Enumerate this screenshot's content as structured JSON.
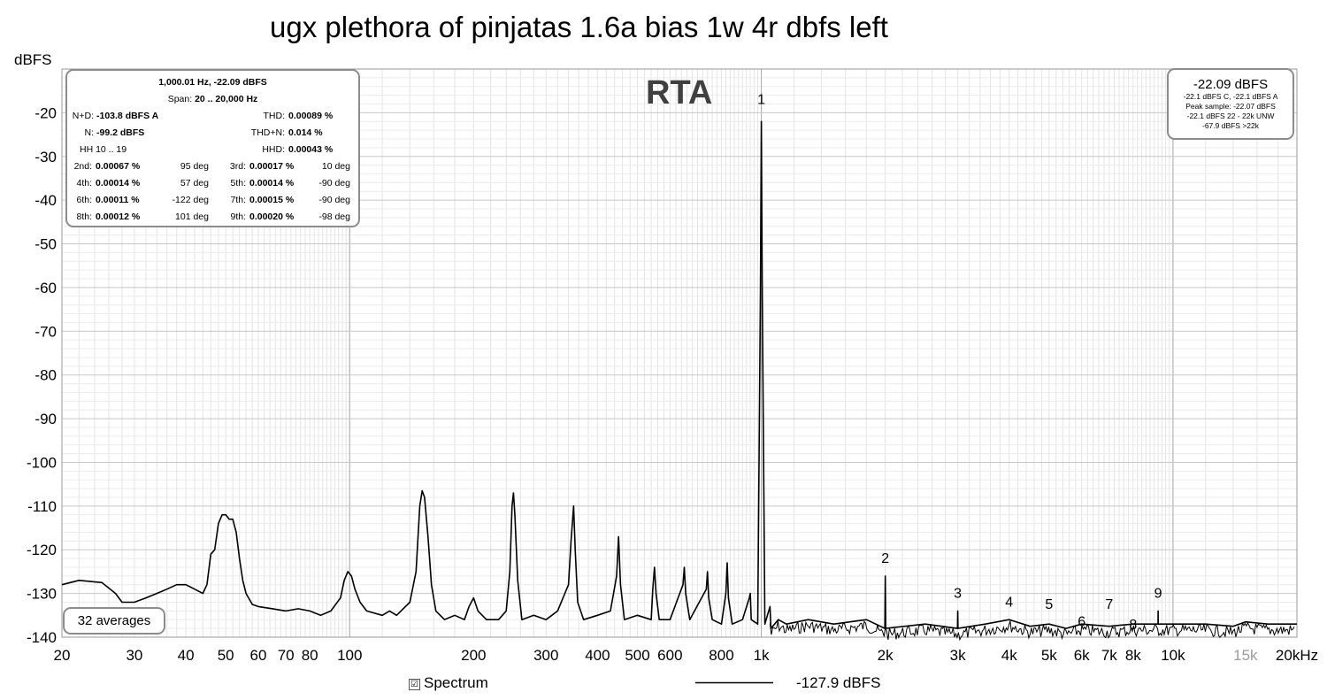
{
  "chart_data": {
    "type": "line",
    "title": "ugx plethora of pinjatas 1.6a bias 1w 4r dbfs left",
    "ylabel": "dBFS",
    "xlabel": "",
    "x_scale": "log",
    "xlim": [
      20,
      20000
    ],
    "ylim": [
      -140,
      -10
    ],
    "grid": true,
    "x_ticks": [
      {
        "v": 20,
        "t": "20"
      },
      {
        "v": 30,
        "t": "30"
      },
      {
        "v": 40,
        "t": "40"
      },
      {
        "v": 50,
        "t": "50"
      },
      {
        "v": 60,
        "t": "60"
      },
      {
        "v": 70,
        "t": "70"
      },
      {
        "v": 80,
        "t": "80"
      },
      {
        "v": 100,
        "t": "100"
      },
      {
        "v": 200,
        "t": "200"
      },
      {
        "v": 300,
        "t": "300"
      },
      {
        "v": 400,
        "t": "400"
      },
      {
        "v": 500,
        "t": "500"
      },
      {
        "v": 600,
        "t": "600"
      },
      {
        "v": 800,
        "t": "800"
      },
      {
        "v": 1000,
        "t": "1k"
      },
      {
        "v": 2000,
        "t": "2k"
      },
      {
        "v": 3000,
        "t": "3k"
      },
      {
        "v": 4000,
        "t": "4k"
      },
      {
        "v": 5000,
        "t": "5k"
      },
      {
        "v": 6000,
        "t": "6k"
      },
      {
        "v": 7000,
        "t": "7k"
      },
      {
        "v": 8000,
        "t": "8k"
      },
      {
        "v": 10000,
        "t": "10k"
      },
      {
        "v": 15000,
        "t": "15k",
        "faint": true
      },
      {
        "v": 20000,
        "t": "20kHz"
      }
    ],
    "y_ticks": [
      -20,
      -30,
      -40,
      -50,
      -60,
      -70,
      -80,
      -90,
      -100,
      -110,
      -120,
      -130,
      -140
    ],
    "series": [
      {
        "name": "Spectrum",
        "color": "#000000",
        "points": [
          [
            20,
            -128
          ],
          [
            22,
            -127
          ],
          [
            25,
            -127.5
          ],
          [
            27,
            -130
          ],
          [
            28,
            -132
          ],
          [
            30,
            -132
          ],
          [
            32,
            -131
          ],
          [
            34,
            -130
          ],
          [
            36,
            -129
          ],
          [
            38,
            -128
          ],
          [
            40,
            -128
          ],
          [
            42,
            -129
          ],
          [
            44,
            -130
          ],
          [
            45,
            -128
          ],
          [
            46,
            -121
          ],
          [
            47,
            -120
          ],
          [
            48,
            -114
          ],
          [
            49,
            -112
          ],
          [
            50,
            -112
          ],
          [
            51,
            -113
          ],
          [
            52,
            -113
          ],
          [
            53,
            -116
          ],
          [
            54,
            -122
          ],
          [
            55,
            -127
          ],
          [
            56,
            -130
          ],
          [
            58,
            -132.5
          ],
          [
            60,
            -133
          ],
          [
            65,
            -133.5
          ],
          [
            70,
            -134
          ],
          [
            75,
            -133.5
          ],
          [
            80,
            -134
          ],
          [
            85,
            -135
          ],
          [
            90,
            -134
          ],
          [
            95,
            -131
          ],
          [
            97,
            -127
          ],
          [
            99,
            -125
          ],
          [
            101,
            -126
          ],
          [
            103,
            -129
          ],
          [
            106,
            -132
          ],
          [
            110,
            -134
          ],
          [
            120,
            -135
          ],
          [
            125,
            -134
          ],
          [
            130,
            -135
          ],
          [
            140,
            -132
          ],
          [
            145,
            -125
          ],
          [
            148,
            -110
          ],
          [
            150,
            -106.5
          ],
          [
            152,
            -108
          ],
          [
            155,
            -117
          ],
          [
            158,
            -128
          ],
          [
            162,
            -134
          ],
          [
            170,
            -136
          ],
          [
            180,
            -135
          ],
          [
            190,
            -136
          ],
          [
            195,
            -133
          ],
          [
            200,
            -131
          ],
          [
            205,
            -134
          ],
          [
            215,
            -136
          ],
          [
            230,
            -136
          ],
          [
            240,
            -134
          ],
          [
            245,
            -125
          ],
          [
            248,
            -110
          ],
          [
            250,
            -107
          ],
          [
            252,
            -112
          ],
          [
            256,
            -127
          ],
          [
            262,
            -136
          ],
          [
            280,
            -135
          ],
          [
            300,
            -136
          ],
          [
            320,
            -134
          ],
          [
            340,
            -128
          ],
          [
            345,
            -118
          ],
          [
            350,
            -110
          ],
          [
            353,
            -120
          ],
          [
            358,
            -132
          ],
          [
            370,
            -136
          ],
          [
            400,
            -135
          ],
          [
            430,
            -134
          ],
          [
            445,
            -126
          ],
          [
            450,
            -117
          ],
          [
            455,
            -128
          ],
          [
            465,
            -136
          ],
          [
            500,
            -135
          ],
          [
            540,
            -136
          ],
          [
            545,
            -129
          ],
          [
            550,
            -124
          ],
          [
            555,
            -130
          ],
          [
            565,
            -136
          ],
          [
            600,
            -136
          ],
          [
            645,
            -128
          ],
          [
            650,
            -124
          ],
          [
            655,
            -130
          ],
          [
            670,
            -136
          ],
          [
            735,
            -129
          ],
          [
            740,
            -125
          ],
          [
            745,
            -131
          ],
          [
            760,
            -136
          ],
          [
            800,
            -137
          ],
          [
            820,
            -130
          ],
          [
            826,
            -123
          ],
          [
            832,
            -131
          ],
          [
            850,
            -137
          ],
          [
            900,
            -136
          ],
          [
            935,
            -131
          ],
          [
            940,
            -130
          ],
          [
            945,
            -136
          ],
          [
            980,
            -137
          ],
          [
            995,
            -60
          ],
          [
            1000,
            -22
          ],
          [
            1005,
            -60
          ],
          [
            1020,
            -137
          ],
          [
            1050,
            -133
          ],
          [
            1055,
            -138
          ],
          [
            1100,
            -136
          ],
          [
            1150,
            -137
          ],
          [
            1300,
            -136
          ],
          [
            1500,
            -137
          ],
          [
            1800,
            -136
          ],
          [
            1995,
            -138
          ],
          [
            2000,
            -126
          ],
          [
            2005,
            -138
          ],
          [
            2500,
            -137
          ],
          [
            2995,
            -138
          ],
          [
            3000,
            -134
          ],
          [
            3005,
            -138
          ],
          [
            3500,
            -137
          ],
          [
            4000,
            -136
          ],
          [
            4500,
            -137.5
          ],
          [
            5000,
            -137
          ],
          [
            5500,
            -138
          ],
          [
            6000,
            -137
          ],
          [
            7000,
            -137.5
          ],
          [
            8000,
            -137
          ],
          [
            9000,
            -137
          ],
          [
            9195,
            -137
          ],
          [
            9200,
            -134
          ],
          [
            9205,
            -137
          ],
          [
            10000,
            -137
          ],
          [
            12000,
            -137
          ],
          [
            14000,
            -137.5
          ],
          [
            15000,
            -136.5
          ],
          [
            17000,
            -137
          ],
          [
            20000,
            -137
          ]
        ]
      }
    ],
    "annotations": [
      {
        "t": "1",
        "x": 1000,
        "y": -18
      },
      {
        "t": "2",
        "x": 2000,
        "y": -123
      },
      {
        "t": "3",
        "x": 3000,
        "y": -131
      },
      {
        "t": "4",
        "x": 4000,
        "y": -133
      },
      {
        "t": "5",
        "x": 5000,
        "y": -133.5
      },
      {
        "t": "6",
        "x": 6000,
        "y": -137.5
      },
      {
        "t": "7",
        "x": 7000,
        "y": -133.5
      },
      {
        "t": "8",
        "x": 8000,
        "y": -138.2
      },
      {
        "t": "9",
        "x": 9200,
        "y": -131
      }
    ],
    "overlay_label": "RTA"
  },
  "stats": {
    "header": "1,000.01 Hz, -22.09 dBFS",
    "span_label": "Span:",
    "span_value": "20 .. 20,000 Hz",
    "nd_label": "N+D:",
    "nd_value": "-103.8 dBFS A",
    "thd_label": "THD:",
    "thd_value": "0.00089 %",
    "n_label": "N:",
    "n_value": "-99.2 dBFS",
    "thdn_label": "THD+N:",
    "thdn_value": "0.014 %",
    "hh_label": "HH 10 .. 19",
    "hhd_label": "HHD:",
    "hhd_value": "0.00043 %",
    "harmonics": [
      {
        "l1": "2nd:",
        "v1": "0.00067 %",
        "d1": "95 deg",
        "l2": "3rd:",
        "v2": "0.00017 %",
        "d2": "10 deg"
      },
      {
        "l1": "4th:",
        "v1": "0.00014 %",
        "d1": "57 deg",
        "l2": "5th:",
        "v2": "0.00014 %",
        "d2": "-90 deg"
      },
      {
        "l1": "6th:",
        "v1": "0.00011 %",
        "d1": "-122 deg",
        "l2": "7th:",
        "v2": "0.00015 %",
        "d2": "-90 deg"
      },
      {
        "l1": "8th:",
        "v1": "0.00012 %",
        "d1": "101 deg",
        "l2": "9th:",
        "v2": "0.00020 %",
        "d2": "-98 deg"
      }
    ]
  },
  "level": {
    "main": "-22.09 dBFS",
    "line1": "-22.1 dBFS C, -22.1 dBFS A",
    "line2": "Peak sample: -22.07 dBFS",
    "line3": "-22.1 dBFS 22 - 22k UNW",
    "line4": "-67.9 dBFS >22k"
  },
  "averages": "32 averages",
  "legend": {
    "check": "☑",
    "series_label": "Spectrum",
    "cursor_value": "-127.9 dBFS"
  }
}
